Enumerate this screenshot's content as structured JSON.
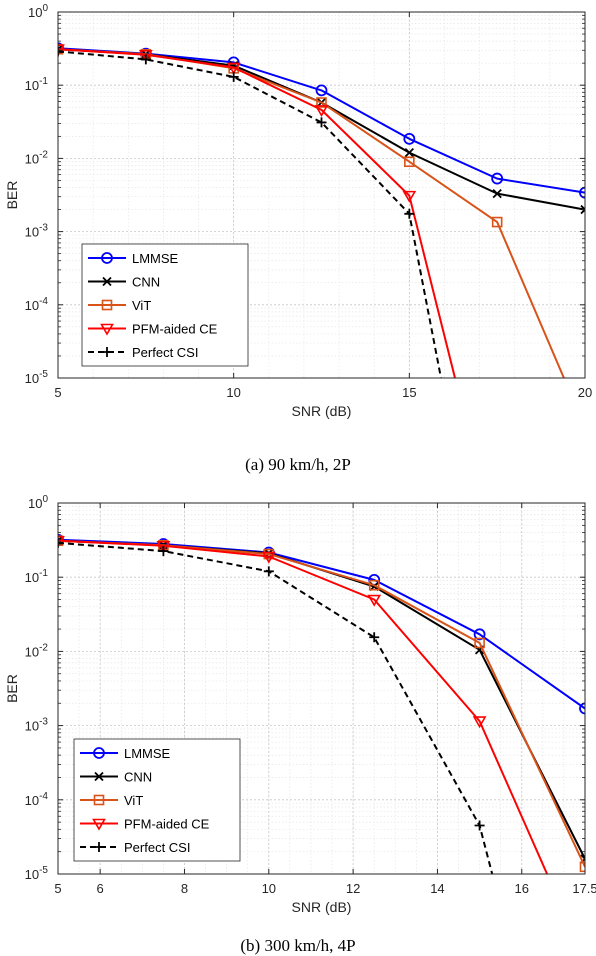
{
  "chart_data": [
    {
      "type": "line",
      "caption": "(a) 90 km/h, 2P",
      "xlabel": "SNR (dB)",
      "ylabel": "BER",
      "xlim": [
        5,
        20
      ],
      "ylim": [
        1e-05,
        1
      ],
      "yscale": "log",
      "grid": true,
      "legend_position": "bottom-left",
      "xticks": [
        5,
        10,
        15,
        20
      ],
      "xtick_labels": [
        "5",
        "10",
        "15",
        "20"
      ],
      "series": [
        {
          "name": "LMMSE",
          "color": "#0000ff",
          "marker": "circle",
          "x": [
            5,
            7.5,
            10,
            12.5,
            15,
            17.5,
            20
          ],
          "y": [
            0.32,
            0.27,
            0.205,
            0.085,
            0.0185,
            0.0053,
            0.0034
          ]
        },
        {
          "name": "CNN",
          "color": "#000000",
          "marker": "x",
          "x": [
            5,
            7.5,
            10,
            12.5,
            15,
            17.5,
            20
          ],
          "y": [
            0.31,
            0.265,
            0.185,
            0.058,
            0.012,
            0.0033,
            0.002
          ]
        },
        {
          "name": "ViT",
          "color": "#d95319",
          "marker": "square",
          "x": [
            5,
            7.5,
            10,
            12.5,
            15,
            17.5,
            19.4
          ],
          "y": [
            0.31,
            0.265,
            0.17,
            0.058,
            0.009,
            0.00135,
            1e-05
          ]
        },
        {
          "name": "PFM-aided CE",
          "color": "#ff0000",
          "marker": "triangle-down",
          "x": [
            5,
            7.5,
            10,
            12.5,
            15,
            16.3
          ],
          "y": [
            0.31,
            0.26,
            0.175,
            0.046,
            0.0031,
            1e-05
          ]
        },
        {
          "name": "Perfect CSI",
          "color": "#000000",
          "marker": "plus",
          "dash": true,
          "x": [
            5,
            7.5,
            10,
            12.5,
            15,
            15.9
          ],
          "y": [
            0.29,
            0.225,
            0.13,
            0.031,
            0.00175,
            1e-05
          ]
        }
      ]
    },
    {
      "type": "line",
      "caption": "(b) 300 km/h, 4P",
      "xlabel": "SNR (dB)",
      "ylabel": "BER",
      "xlim": [
        5,
        17.5
      ],
      "ylim": [
        1e-05,
        1
      ],
      "yscale": "log",
      "grid": true,
      "legend_position": "bottom-left",
      "xticks": [
        5,
        6,
        8,
        10,
        12,
        14,
        16,
        17.5
      ],
      "xtick_labels": [
        "5",
        "6",
        "8",
        "10",
        "12",
        "14",
        "16",
        "17.5"
      ],
      "series": [
        {
          "name": "LMMSE",
          "color": "#0000ff",
          "marker": "circle",
          "x": [
            5,
            7.5,
            10,
            12.5,
            15,
            17.5
          ],
          "y": [
            0.32,
            0.28,
            0.215,
            0.092,
            0.017,
            0.0017
          ]
        },
        {
          "name": "CNN",
          "color": "#000000",
          "marker": "x",
          "x": [
            5,
            7.5,
            10,
            12.5,
            15,
            17.5
          ],
          "y": [
            0.31,
            0.27,
            0.21,
            0.075,
            0.0105,
            1.6e-05
          ]
        },
        {
          "name": "ViT",
          "color": "#d95319",
          "marker": "square",
          "x": [
            5,
            7.5,
            10,
            12.5,
            15,
            17.5
          ],
          "y": [
            0.31,
            0.27,
            0.205,
            0.078,
            0.013,
            1.25e-05
          ]
        },
        {
          "name": "PFM-aided CE",
          "color": "#ff0000",
          "marker": "triangle-down",
          "x": [
            5,
            7.5,
            10,
            12.5,
            15,
            16.6
          ],
          "y": [
            0.31,
            0.265,
            0.19,
            0.05,
            0.00115,
            1e-05
          ]
        },
        {
          "name": "Perfect CSI",
          "color": "#000000",
          "marker": "plus",
          "dash": true,
          "x": [
            5,
            7.5,
            10,
            12.5,
            15,
            15.3
          ],
          "y": [
            0.29,
            0.225,
            0.12,
            0.0155,
            4.5e-05,
            1e-05
          ]
        }
      ]
    }
  ]
}
